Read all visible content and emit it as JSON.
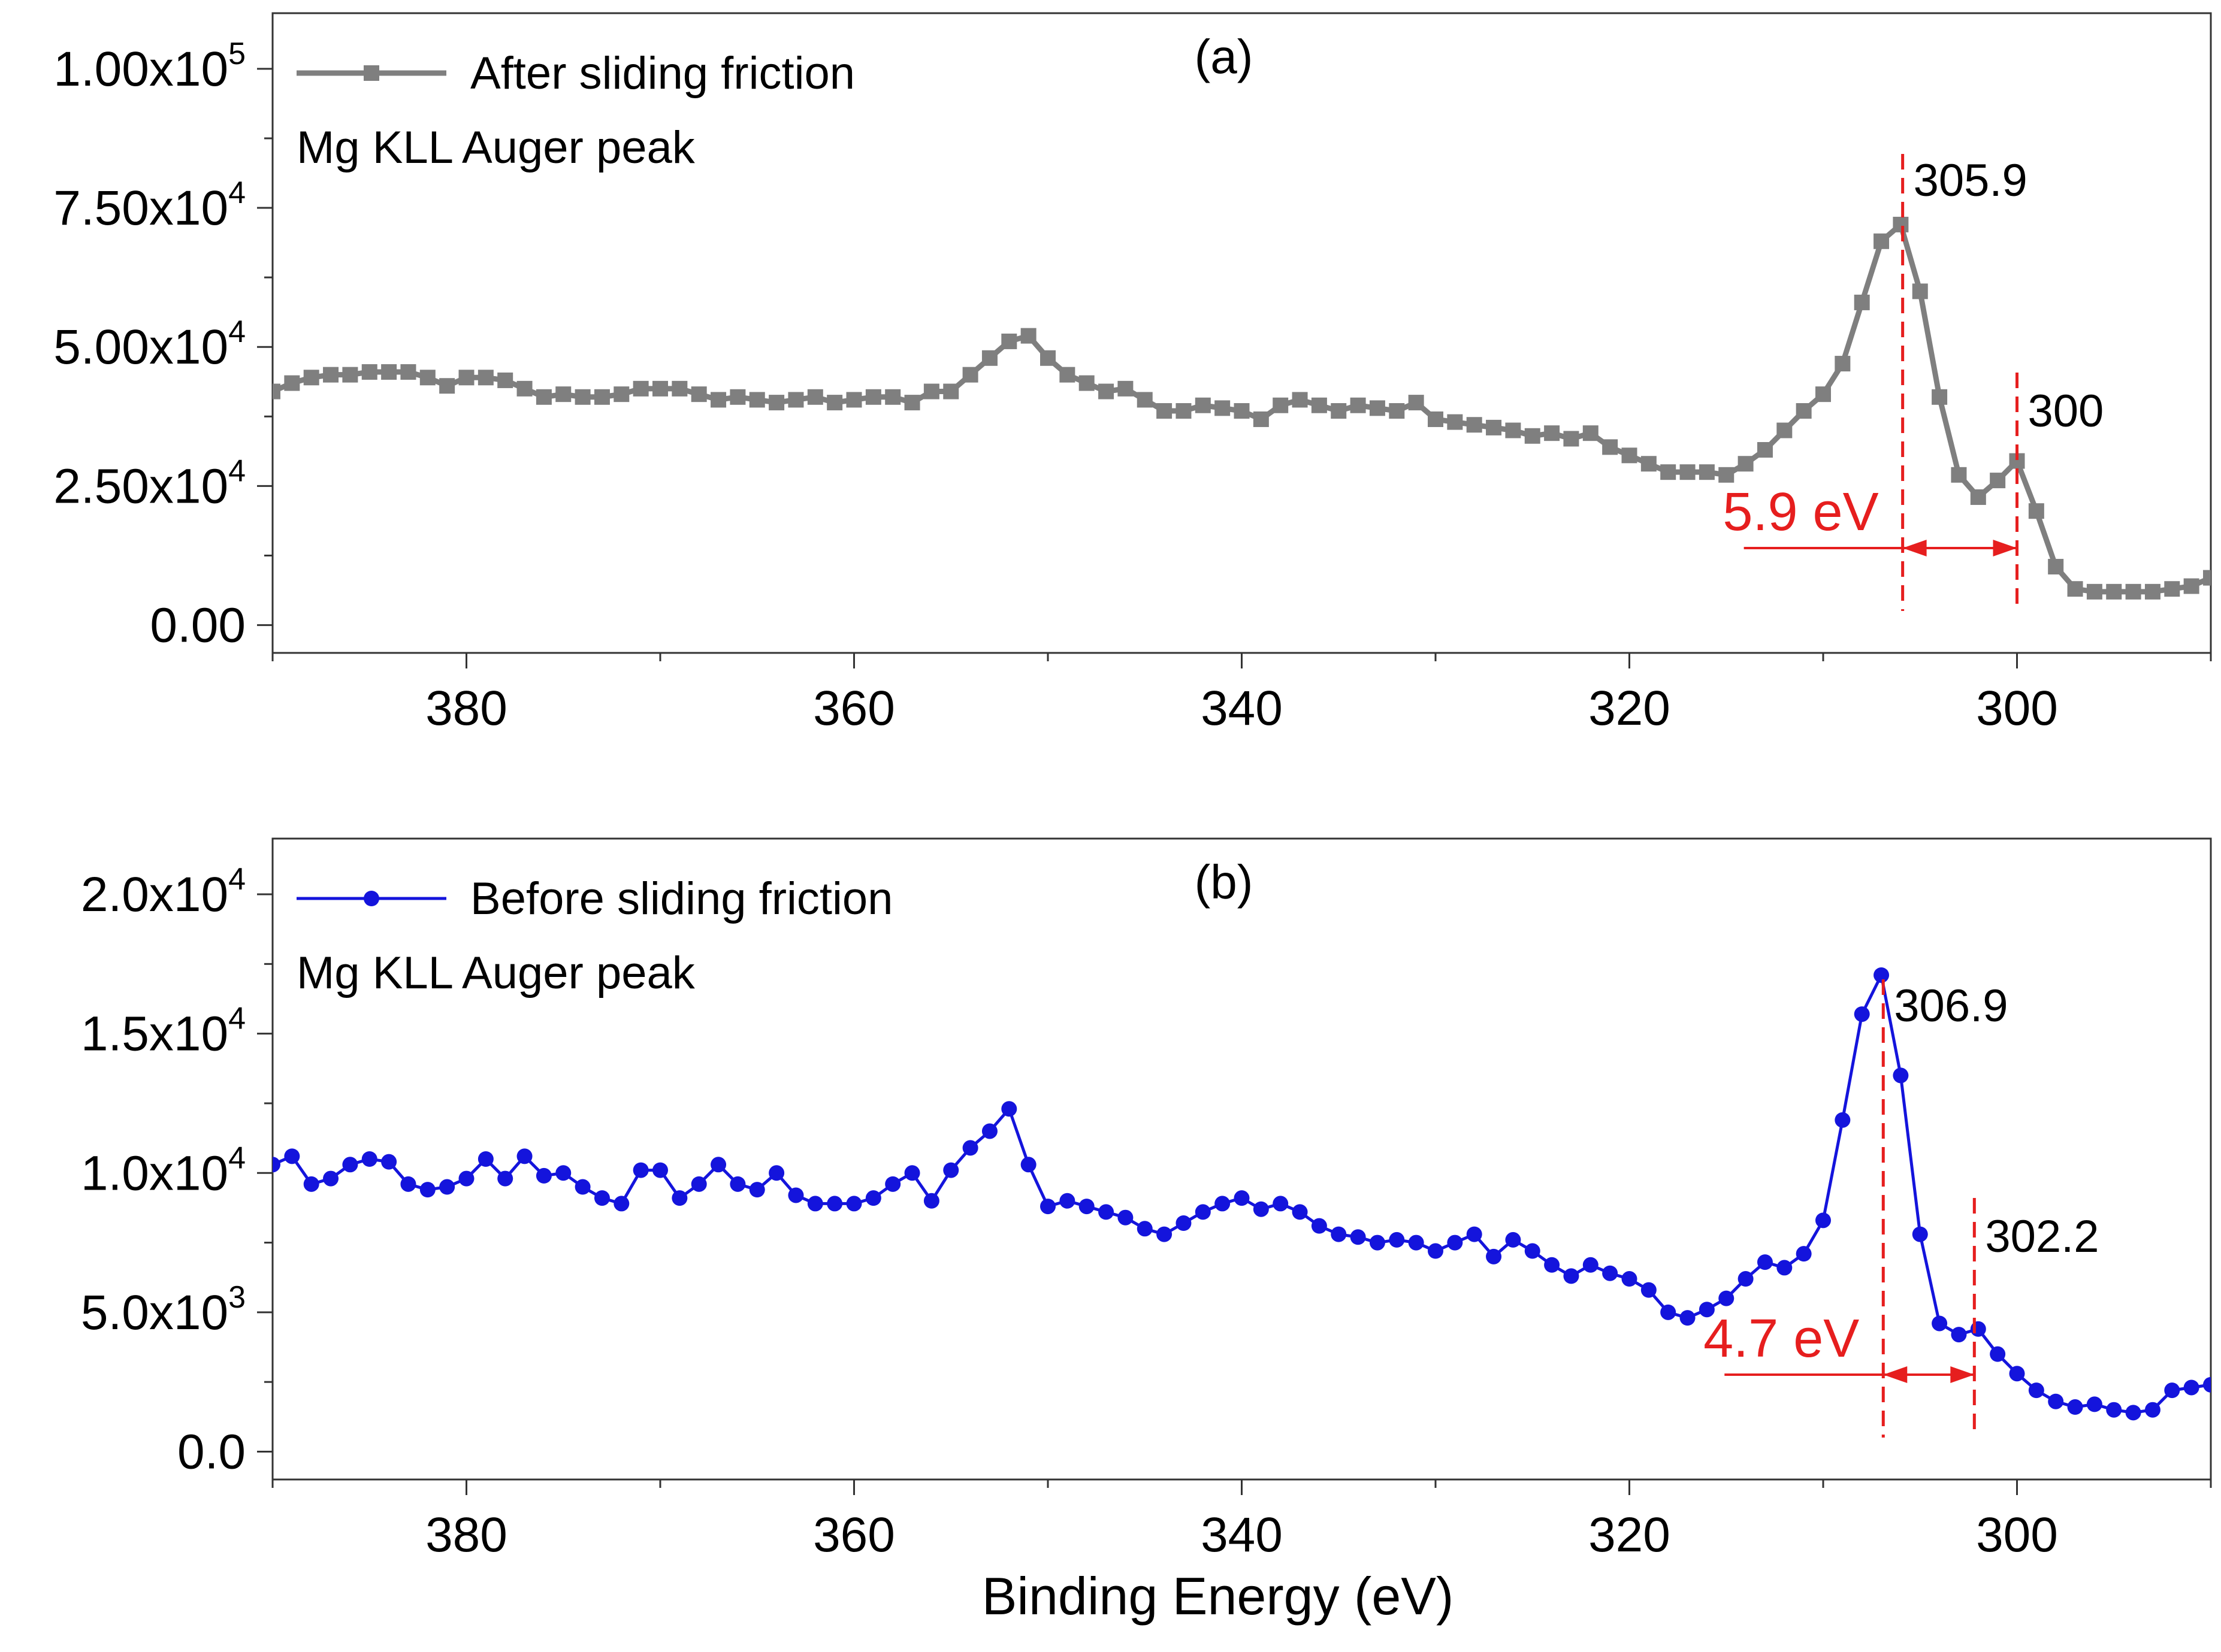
{
  "chart_data": [
    {
      "id": "a",
      "type": "line",
      "panel_label": "(a)",
      "legend": "After sliding friction",
      "annotation": "Mg KLL Auger peak",
      "xlabel": "",
      "xlim": [
        390,
        290
      ],
      "ylim": [
        -5000,
        110000
      ],
      "xticks": [
        380,
        360,
        340,
        320,
        300
      ],
      "yticks": [
        {
          "value": 0,
          "mantissa": "0.00",
          "exp": ""
        },
        {
          "value": 25000,
          "mantissa": "2.50x10",
          "exp": "4"
        },
        {
          "value": 50000,
          "mantissa": "5.00x10",
          "exp": "4"
        },
        {
          "value": 75000,
          "mantissa": "7.50x10",
          "exp": "4"
        },
        {
          "value": 100000,
          "mantissa": "1.00x10",
          "exp": "5"
        }
      ],
      "color": "#7f7f7f",
      "marker": "square",
      "peaks": [
        {
          "x": 305.9,
          "label": "305.9"
        },
        {
          "x": 300,
          "label": "300"
        }
      ],
      "diff_label": "5.9 eV",
      "x": [
        390,
        389,
        388,
        387,
        386,
        385,
        384,
        383,
        382,
        381,
        380,
        379,
        378,
        377,
        376,
        375,
        374,
        373,
        372,
        371,
        370,
        369,
        368,
        367,
        366,
        365,
        364,
        363,
        362,
        361,
        360,
        359,
        358,
        357,
        356,
        355,
        354,
        353,
        352,
        351,
        350,
        349,
        348,
        347,
        346,
        345,
        344,
        343,
        342,
        341,
        340,
        339,
        338,
        337,
        336,
        335,
        334,
        333,
        332,
        331,
        330,
        329,
        328,
        327,
        326,
        325,
        324,
        323,
        322,
        321,
        320,
        319,
        318,
        317,
        316,
        315,
        314,
        313,
        312,
        311,
        310,
        309,
        308,
        307,
        306,
        305,
        304,
        303,
        302,
        301,
        300,
        299,
        298,
        297,
        296,
        295,
        294,
        293,
        292,
        291,
        290
      ],
      "y": [
        42000,
        43500,
        44500,
        45000,
        45000,
        45500,
        45500,
        45500,
        44500,
        43000,
        44500,
        44500,
        44000,
        42500,
        41000,
        41500,
        41000,
        41000,
        41500,
        42500,
        42500,
        42500,
        41500,
        40500,
        41000,
        40500,
        40000,
        40500,
        41000,
        40000,
        40500,
        41000,
        41000,
        40000,
        42000,
        42000,
        45000,
        48000,
        51000,
        52000,
        48000,
        45000,
        43500,
        42000,
        42500,
        40500,
        38500,
        38500,
        39500,
        39000,
        38500,
        37000,
        39500,
        40500,
        39500,
        38500,
        39500,
        39000,
        38500,
        40000,
        37000,
        36500,
        36000,
        35500,
        35000,
        34000,
        34500,
        33500,
        34500,
        32000,
        30500,
        29000,
        27500,
        27500,
        27500,
        27000,
        29000,
        31500,
        35000,
        38500,
        41500,
        47000,
        58000,
        69000,
        72000,
        60000,
        41000,
        27000,
        23000,
        26000,
        29500,
        20500,
        10500,
        6500,
        6000,
        6000,
        6000,
        6000,
        6500,
        7000,
        8500
      ]
    },
    {
      "id": "b",
      "type": "line",
      "panel_label": "(b)",
      "legend": "Before sliding friction",
      "annotation": "Mg KLL Auger peak",
      "xlabel": "Binding Energy (eV)",
      "xlim": [
        390,
        290
      ],
      "ylim": [
        -1000,
        22000
      ],
      "xticks": [
        380,
        360,
        340,
        320,
        300
      ],
      "yticks": [
        {
          "value": 0,
          "mantissa": "0.0",
          "exp": ""
        },
        {
          "value": 5000,
          "mantissa": "5.0x10",
          "exp": "3"
        },
        {
          "value": 10000,
          "mantissa": "1.0x10",
          "exp": "4"
        },
        {
          "value": 15000,
          "mantissa": "1.5x10",
          "exp": "4"
        },
        {
          "value": 20000,
          "mantissa": "2.0x10",
          "exp": "4"
        }
      ],
      "color": "#1414dc",
      "marker": "circle",
      "peaks": [
        {
          "x": 306.9,
          "label": "306.9"
        },
        {
          "x": 302.2,
          "label": "302.2"
        }
      ],
      "diff_label": "4.7 eV",
      "x": [
        390,
        389,
        388,
        387,
        386,
        385,
        384,
        383,
        382,
        381,
        380,
        379,
        378,
        377,
        376,
        375,
        374,
        373,
        372,
        371,
        370,
        369,
        368,
        367,
        366,
        365,
        364,
        363,
        362,
        361,
        360,
        359,
        358,
        357,
        356,
        355,
        354,
        353,
        352,
        351,
        350,
        349,
        348,
        347,
        346,
        345,
        344,
        343,
        342,
        341,
        340,
        339,
        338,
        337,
        336,
        335,
        334,
        333,
        332,
        331,
        330,
        329,
        328,
        327,
        326,
        325,
        324,
        323,
        322,
        321,
        320,
        319,
        318,
        317,
        316,
        315,
        314,
        313,
        312,
        311,
        310,
        309,
        308,
        307,
        306,
        305,
        304,
        303,
        302,
        301,
        300,
        299,
        298,
        297,
        296,
        295,
        294,
        293,
        292,
        291,
        290
      ],
      "y": [
        10300,
        10600,
        9600,
        9800,
        10300,
        10500,
        10400,
        9600,
        9400,
        9500,
        9800,
        10500,
        9800,
        10600,
        9900,
        10000,
        9500,
        9100,
        8900,
        10100,
        10100,
        9100,
        9600,
        10300,
        9600,
        9400,
        10000,
        9200,
        8900,
        8900,
        8900,
        9100,
        9600,
        10000,
        9000,
        10100,
        10900,
        11500,
        12300,
        10300,
        8800,
        9000,
        8800,
        8600,
        8400,
        8000,
        7800,
        8200,
        8600,
        8900,
        9100,
        8700,
        8900,
        8600,
        8100,
        7800,
        7700,
        7500,
        7600,
        7500,
        7200,
        7500,
        7800,
        7000,
        7600,
        7200,
        6700,
        6300,
        6700,
        6400,
        6200,
        5800,
        5000,
        4800,
        5100,
        5500,
        6200,
        6800,
        6600,
        7100,
        8300,
        11900,
        15700,
        17100,
        13500,
        7800,
        4600,
        4200,
        4400,
        3500,
        2800,
        2200,
        1800,
        1600,
        1700,
        1500,
        1400,
        1500,
        2200,
        2300,
        2400
      ]
    }
  ]
}
